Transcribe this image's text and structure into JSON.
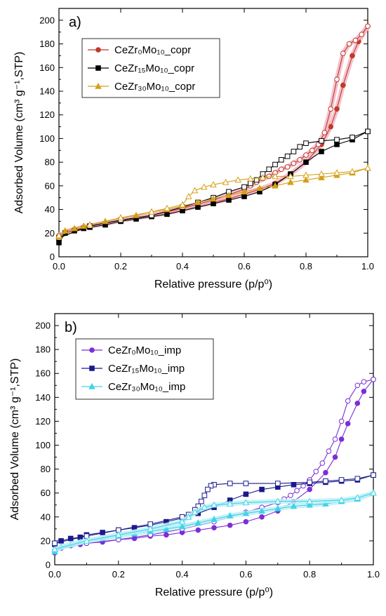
{
  "chart_data": [
    {
      "type": "line",
      "panel_label": "a)",
      "xlabel": "Relative pressure (p/p⁰)",
      "ylabel": "Adsorbed Volume (cm³ g⁻¹,STP)",
      "xlim": [
        0.0,
        1.0
      ],
      "ylim": [
        0,
        210
      ],
      "xticks": [
        0.0,
        0.2,
        0.4,
        0.6,
        0.8,
        1.0
      ],
      "xtick_labels": [
        "0.0",
        "0.2",
        "0.4",
        "0.6",
        "0.8",
        "1.0"
      ],
      "yticks": [
        0,
        20,
        40,
        60,
        80,
        100,
        120,
        140,
        160,
        180,
        200
      ],
      "ytick_labels": [
        "0",
        "20",
        "40",
        "60",
        "80",
        "100",
        "120",
        "140",
        "160",
        "180",
        "200"
      ],
      "grid": false,
      "legend_position": "top-left",
      "series": [
        {
          "name": "CeZr₀Mo₁₀_copr",
          "color": "#c0392b",
          "band": "#f2b8c6",
          "marker": "circle",
          "adsorption": {
            "x": [
              0.0,
              0.02,
              0.05,
              0.08,
              0.1,
              0.15,
              0.2,
              0.25,
              0.3,
              0.35,
              0.4,
              0.45,
              0.5,
              0.55,
              0.6,
              0.65,
              0.7,
              0.75,
              0.8,
              0.85,
              0.88,
              0.9,
              0.92,
              0.95,
              0.97,
              1.0
            ],
            "y": [
              16,
              21,
              23,
              25,
              26,
              28,
              31,
              33,
              35,
              37,
              40,
              43,
              46,
              49,
              53,
              57,
              62,
              70,
              80,
              95,
              110,
              125,
              145,
              170,
              182,
              195
            ]
          },
          "desorption": {
            "x": [
              1.0,
              0.98,
              0.96,
              0.94,
              0.92,
              0.9,
              0.88,
              0.86,
              0.84,
              0.82,
              0.8,
              0.78,
              0.76,
              0.74,
              0.72,
              0.7,
              0.68,
              0.66,
              0.64,
              0.62,
              0.6,
              0.5,
              0.4,
              0.3,
              0.2,
              0.1,
              0.05,
              0.0
            ],
            "y": [
              195,
              188,
              183,
              180,
              172,
              150,
              125,
              105,
              95,
              90,
              86,
              82,
              79,
              76,
              74,
              71,
              68,
              66,
              63,
              60,
              57,
              48,
              41,
              35,
              31,
              26,
              23,
              18
            ]
          }
        },
        {
          "name": "CeZr₁₅Mo₁₀_copr",
          "color": "#000000",
          "band": null,
          "marker": "square",
          "adsorption": {
            "x": [
              0.0,
              0.02,
              0.05,
              0.08,
              0.1,
              0.15,
              0.2,
              0.25,
              0.3,
              0.35,
              0.4,
              0.45,
              0.5,
              0.55,
              0.6,
              0.65,
              0.7,
              0.75,
              0.8,
              0.85,
              0.9,
              0.95,
              1.0
            ],
            "y": [
              12,
              20,
              22,
              24,
              25,
              27,
              30,
              32,
              34,
              36,
              39,
              42,
              45,
              48,
              51,
              55,
              61,
              70,
              80,
              89,
              95,
              99,
              106
            ]
          },
          "desorption": {
            "x": [
              1.0,
              0.95,
              0.9,
              0.85,
              0.8,
              0.78,
              0.76,
              0.74,
              0.72,
              0.7,
              0.68,
              0.66,
              0.64,
              0.62,
              0.6,
              0.55,
              0.5,
              0.45,
              0.4,
              0.3,
              0.2,
              0.1,
              0.0
            ],
            "y": [
              106,
              101,
              99,
              98,
              96,
              93,
              89,
              85,
              82,
              78,
              74,
              70,
              65,
              62,
              59,
              55,
              50,
              46,
              42,
              35,
              31,
              26,
              16
            ]
          }
        },
        {
          "name": "CeZr₃₀Mo₁₀_copr",
          "color": "#d4a017",
          "band": null,
          "marker": "triangle",
          "adsorption": {
            "x": [
              0.0,
              0.02,
              0.05,
              0.08,
              0.1,
              0.15,
              0.2,
              0.25,
              0.3,
              0.35,
              0.4,
              0.45,
              0.5,
              0.55,
              0.6,
              0.65,
              0.7,
              0.75,
              0.8,
              0.85,
              0.9,
              0.95,
              1.0
            ],
            "y": [
              17,
              22,
              24,
              26,
              27,
              30,
              33,
              35,
              38,
              40,
              43,
              46,
              49,
              52,
              55,
              58,
              60,
              63,
              65,
              67,
              69,
              71,
              75
            ]
          },
          "desorption": {
            "x": [
              1.0,
              0.95,
              0.9,
              0.85,
              0.8,
              0.75,
              0.7,
              0.66,
              0.62,
              0.58,
              0.54,
              0.5,
              0.47,
              0.44,
              0.42,
              0.4,
              0.35,
              0.3,
              0.2,
              0.1,
              0.0
            ],
            "y": [
              75,
              72,
              71,
              70,
              69,
              68,
              68,
              67,
              66,
              65,
              63,
              61,
              59,
              56,
              51,
              44,
              41,
              38,
              33,
              27,
              18
            ]
          }
        }
      ]
    },
    {
      "type": "line",
      "panel_label": "b)",
      "xlabel": "Relative pressure (p/p⁰)",
      "ylabel": "Adsorbed Volume (cm³ g⁻¹,STP)",
      "xlim": [
        0.0,
        1.0
      ],
      "ylim": [
        0,
        210
      ],
      "xticks": [
        0.0,
        0.2,
        0.4,
        0.6,
        0.8,
        1.0
      ],
      "xtick_labels": [
        "0.0",
        "0.2",
        "0.4",
        "0.6",
        "0.8",
        "1.0"
      ],
      "yticks": [
        0,
        20,
        40,
        60,
        80,
        100,
        120,
        140,
        160,
        180,
        200
      ],
      "ytick_labels": [
        "0",
        "20",
        "40",
        "60",
        "80",
        "100",
        "120",
        "140",
        "160",
        "180",
        "200"
      ],
      "grid": false,
      "legend_position": "top-left",
      "series": [
        {
          "name": "CeZr₀Mo₁₀_imp",
          "color": "#7b2fd6",
          "band": null,
          "marker": "circle",
          "adsorption": {
            "x": [
              0.0,
              0.02,
              0.05,
              0.08,
              0.1,
              0.15,
              0.2,
              0.25,
              0.3,
              0.35,
              0.4,
              0.45,
              0.5,
              0.55,
              0.6,
              0.65,
              0.7,
              0.75,
              0.8,
              0.85,
              0.88,
              0.9,
              0.92,
              0.95,
              0.97,
              1.0
            ],
            "y": [
              10,
              14,
              16,
              17,
              18,
              19,
              21,
              22,
              24,
              25,
              27,
              29,
              31,
              33,
              36,
              40,
              45,
              53,
              63,
              77,
              90,
              105,
              118,
              135,
              145,
              155
            ]
          },
          "desorption": {
            "x": [
              1.0,
              0.97,
              0.95,
              0.92,
              0.9,
              0.88,
              0.86,
              0.84,
              0.82,
              0.8,
              0.78,
              0.76,
              0.74,
              0.72,
              0.7,
              0.65,
              0.6,
              0.5,
              0.4,
              0.3,
              0.2,
              0.1,
              0.0
            ],
            "y": [
              155,
              153,
              150,
              137,
              120,
              105,
              95,
              85,
              78,
              71,
              66,
              62,
              58,
              55,
              52,
              48,
              44,
              36,
              30,
              25,
              21,
              18,
              12
            ]
          }
        },
        {
          "name": "CeZr₁₅Mo₁₀_imp",
          "color": "#1a1a8c",
          "band": null,
          "marker": "square",
          "adsorption": {
            "x": [
              0.0,
              0.02,
              0.05,
              0.08,
              0.1,
              0.15,
              0.2,
              0.25,
              0.3,
              0.35,
              0.4,
              0.45,
              0.5,
              0.55,
              0.6,
              0.65,
              0.7,
              0.75,
              0.8,
              0.85,
              0.9,
              0.95,
              1.0
            ],
            "y": [
              17,
              20,
              22,
              23,
              25,
              27,
              29,
              31,
              33,
              36,
              39,
              43,
              48,
              54,
              59,
              63,
              65,
              67,
              68,
              69,
              70,
              71,
              75
            ]
          },
          "desorption": {
            "x": [
              1.0,
              0.95,
              0.9,
              0.85,
              0.8,
              0.7,
              0.6,
              0.55,
              0.5,
              0.49,
              0.48,
              0.47,
              0.46,
              0.45,
              0.44,
              0.42,
              0.4,
              0.3,
              0.2,
              0.1,
              0.0
            ],
            "y": [
              75,
              72,
              71,
              70,
              69,
              68,
              68,
              68,
              67,
              66,
              63,
              58,
              53,
              49,
              46,
              42,
              40,
              34,
              29,
              24,
              18
            ]
          }
        },
        {
          "name": "CeZr₃₀Mo₁₀_imp",
          "color": "#3fd4e8",
          "band": "#bff0f6",
          "marker": "triangle",
          "adsorption": {
            "x": [
              0.0,
              0.02,
              0.05,
              0.08,
              0.1,
              0.15,
              0.2,
              0.25,
              0.3,
              0.35,
              0.4,
              0.45,
              0.5,
              0.55,
              0.6,
              0.65,
              0.7,
              0.75,
              0.8,
              0.85,
              0.9,
              0.95,
              1.0
            ],
            "y": [
              11,
              15,
              17,
              19,
              20,
              22,
              24,
              26,
              28,
              30,
              32,
              35,
              38,
              41,
              43,
              45,
              47,
              49,
              50,
              51,
              53,
              55,
              60
            ]
          },
          "desorption": {
            "x": [
              1.0,
              0.95,
              0.9,
              0.8,
              0.7,
              0.6,
              0.55,
              0.5,
              0.47,
              0.44,
              0.42,
              0.4,
              0.3,
              0.2,
              0.1,
              0.0
            ],
            "y": [
              60,
              56,
              54,
              53,
              53,
              52,
              51,
              50,
              48,
              44,
              40,
              36,
              30,
              25,
              20,
              13
            ]
          }
        }
      ]
    }
  ]
}
